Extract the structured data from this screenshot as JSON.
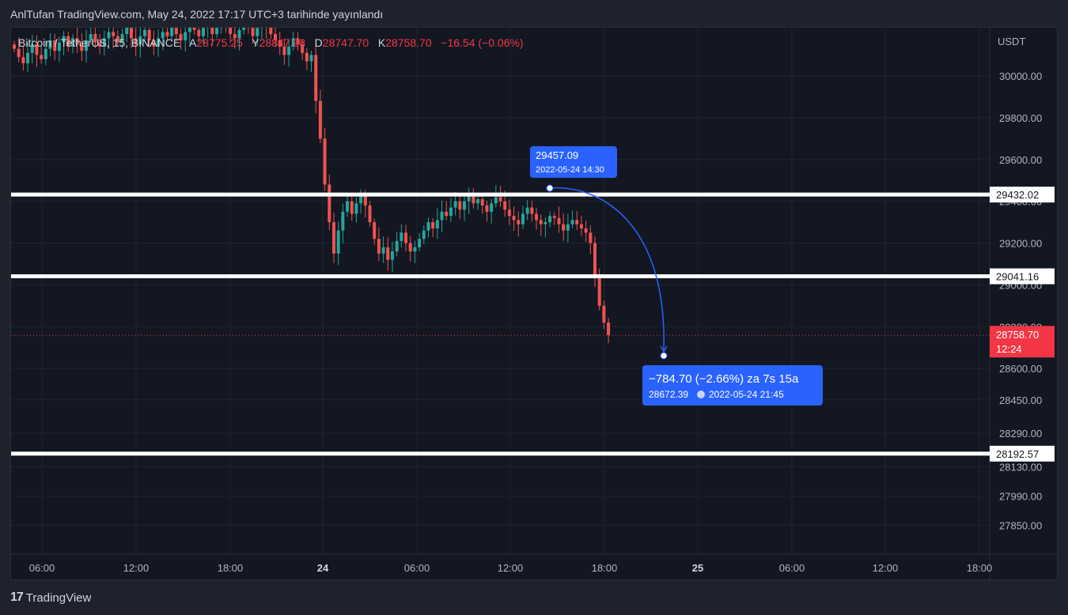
{
  "header": {
    "publish_text": "AnlTufan TradingView.com, May 24, 2022 17:17 UTC+3 tarihinde yayınlandı"
  },
  "legend": {
    "symbol": "Bitcoin / TetherUS, 15, BINANCE",
    "open_label": "A",
    "open": "28775.25",
    "high_label": "Y",
    "high": "28847.98",
    "low_label": "D",
    "low": "28747.70",
    "close_label": "K",
    "close": "28758.70",
    "change": "−16.54 (−0.06%)"
  },
  "footer": {
    "logo_mark": "17",
    "logo_text": "TradingView"
  },
  "colors": {
    "up": "#26a69a",
    "down": "#ef5350",
    "accent": "#2962ff",
    "price_tag": "#f23645"
  },
  "chart_data": {
    "type": "candlestick",
    "currency": "USDT",
    "y_ticks": [
      "30000.00",
      "29800.00",
      "29600.00",
      "29400.00",
      "29200.00",
      "29000.00",
      "28800.00",
      "28600.00",
      "28450.00",
      "28290.00",
      "28130.00",
      "27990.00",
      "27850.00"
    ],
    "x_ticks": [
      "06:00",
      "12:00",
      "18:00",
      "24",
      "06:00",
      "12:00",
      "18:00",
      "25",
      "06:00",
      "12:00",
      "18:00"
    ],
    "horizontal_lines": [
      {
        "value": 29432.02,
        "label": "29432.02"
      },
      {
        "value": 29041.16,
        "label": "29041.16"
      },
      {
        "value": 28192.57,
        "label": "28192.57"
      }
    ],
    "last_price": {
      "value": 28758.7,
      "label": "28758.70",
      "countdown": "12:24"
    },
    "projection": {
      "start": {
        "price": "29457.09",
        "time": "2022-05-24 14:30"
      },
      "end": {
        "summary": "−784.70 (−2.66%) za 7s 15a",
        "price": "28672.39",
        "time": "2022-05-24  21:45"
      }
    },
    "closes_note": "approximate visible price path",
    "closes": [
      30130,
      30090,
      30060,
      30110,
      30150,
      30100,
      30080,
      30130,
      30170,
      30120,
      30160,
      30190,
      30140,
      30180,
      30150,
      30120,
      30170,
      30200,
      30160,
      30140,
      30180,
      30210,
      30190,
      30160,
      30200,
      30230,
      30180,
      30150,
      30190,
      30220,
      30170,
      30140,
      30180,
      30210,
      30190,
      30230,
      30200,
      30170,
      30210,
      30250,
      30220,
      30190,
      30230,
      30260,
      30200,
      30230,
      30260,
      30240,
      30200,
      30180,
      30220,
      30260,
      30230,
      30190,
      30230,
      30270,
      30240,
      30200,
      30170,
      30140,
      30100,
      30140,
      30180,
      30150,
      30110,
      30070,
      30100,
      29880,
      29700,
      29480,
      29300,
      29150,
      29260,
      29350,
      29400,
      29340,
      29390,
      29430,
      29380,
      29300,
      29220,
      29150,
      29180,
      29120,
      29160,
      29210,
      29250,
      29200,
      29160,
      29180,
      29220,
      29260,
      29300,
      29270,
      29310,
      29350,
      29330,
      29370,
      29400,
      29360,
      29400,
      29430,
      29390,
      29410,
      29380,
      29350,
      29390,
      29420,
      29400,
      29360,
      29330,
      29310,
      29290,
      29340,
      29370,
      29340,
      29310,
      29290,
      29300,
      29330,
      29320,
      29290,
      29260,
      29290,
      29310,
      29290,
      29270,
      29250,
      29200,
      29050,
      28900,
      28820,
      28760
    ]
  }
}
